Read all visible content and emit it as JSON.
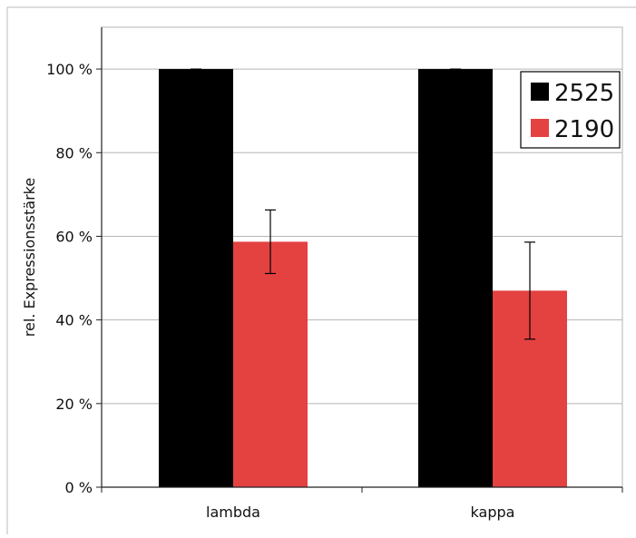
{
  "chart_data": {
    "type": "bar",
    "title": "",
    "xlabel": "",
    "ylabel": "rel. Expressionsstärke",
    "categories": [
      "lambda",
      "kappa"
    ],
    "series": [
      {
        "name": "2525",
        "color": "#000000",
        "values": [
          100,
          100
        ],
        "errors": [
          0,
          0
        ]
      },
      {
        "name": "2190",
        "color": "#e44141",
        "values": [
          58.7,
          47
        ],
        "errors": [
          7.6,
          11.6
        ]
      }
    ],
    "ylim": [
      0,
      110
    ],
    "yticks": [
      0,
      20,
      40,
      60,
      80,
      100
    ],
    "ytick_labels": [
      "0 %",
      "20 %",
      "40 %",
      "60 %",
      "80 %",
      "100 %"
    ],
    "grid": true,
    "legend_position": "top-right"
  }
}
